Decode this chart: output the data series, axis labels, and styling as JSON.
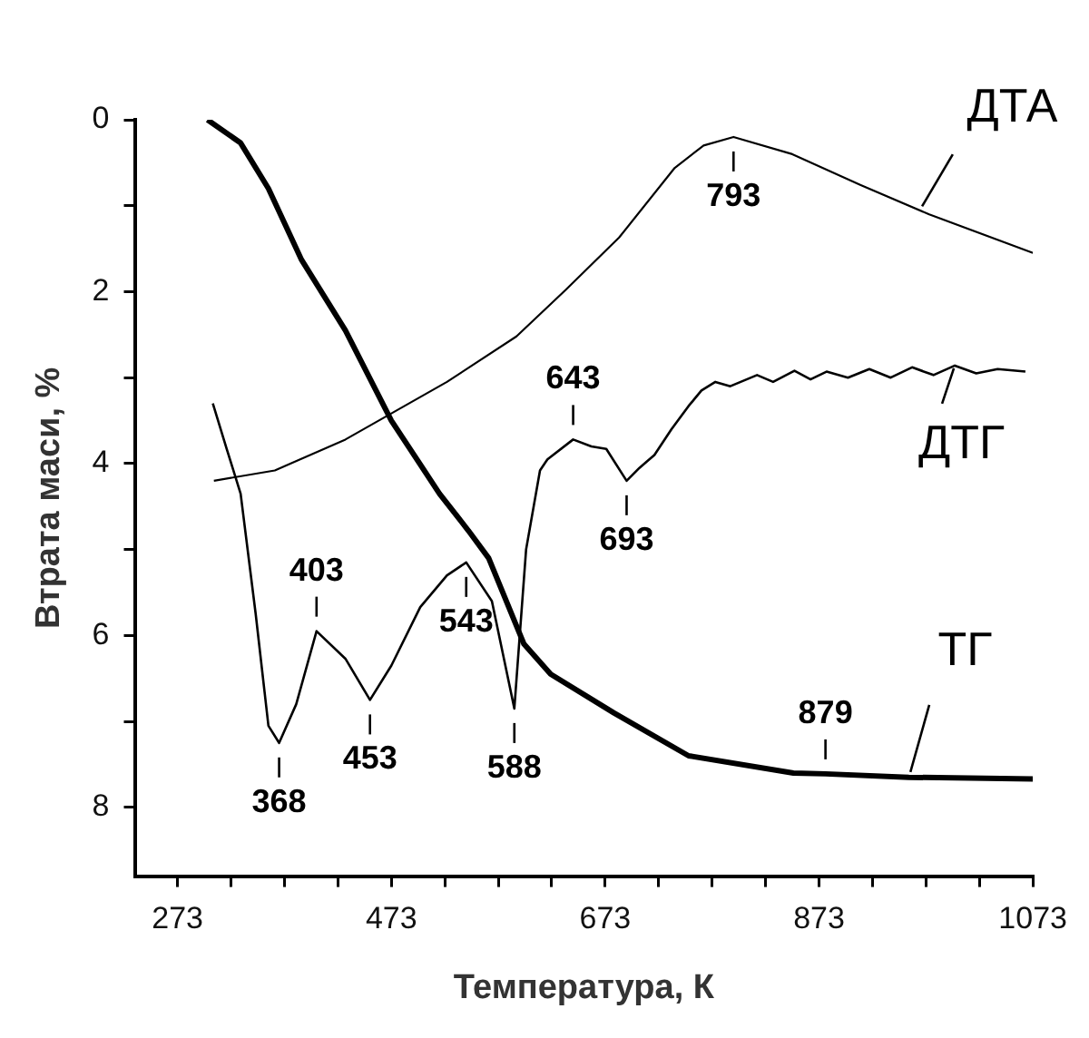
{
  "chart_data": {
    "type": "line",
    "xlabel": "Температура, К",
    "ylabel": "Втрата маси, %",
    "xlim": [
      233,
      1073
    ],
    "ylim": [
      8.8,
      0
    ],
    "xticks": [
      273,
      {
        "value": 323,
        "label": null
      },
      {
        "value": 373,
        "label": null
      },
      {
        "value": 423,
        "label": null
      },
      473,
      {
        "value": 523,
        "label": null
      },
      {
        "value": 573,
        "label": null
      },
      {
        "value": 623,
        "label": null
      },
      673,
      {
        "value": 723,
        "label": null
      },
      {
        "value": 773,
        "label": null
      },
      {
        "value": 823,
        "label": null
      },
      873,
      {
        "value": 923,
        "label": null
      },
      {
        "value": 973,
        "label": null
      },
      {
        "value": 1023,
        "label": null
      },
      1073
    ],
    "yticks": [
      0,
      {
        "value": 1,
        "label": null
      },
      2,
      {
        "value": 3,
        "label": null
      },
      4,
      {
        "value": 5,
        "label": null
      },
      6,
      {
        "value": 7,
        "label": null
      },
      8
    ],
    "grid": false,
    "legend": "right",
    "series": [
      {
        "name": "ТГ",
        "color": "#000000",
        "x": [
          301,
          332,
          358,
          389,
          430,
          473,
          518,
          545,
          564,
          597,
          622,
          681,
          751,
          849,
          879,
          957,
          1073
        ],
        "values": [
          0,
          0.27,
          0.8,
          1.63,
          2.45,
          3.5,
          4.35,
          4.78,
          5.1,
          6.1,
          6.45,
          6.9,
          7.4,
          7.6,
          7.61,
          7.65,
          7.67
        ]
      },
      {
        "name": "ДТГ",
        "color": "#000000",
        "x": [
          306,
          319,
          332,
          346,
          358,
          368,
          384,
          403,
          430,
          453,
          473,
          500,
          525,
          543,
          567,
          588,
          599,
          612,
          619,
          643,
          660,
          674,
          693,
          705,
          719,
          735,
          751,
          763,
          776,
          790,
          815,
          830,
          850,
          865,
          880,
          900,
          920,
          940,
          960,
          980,
          1000,
          1020,
          1040,
          1066
        ],
        "values": [
          3.3,
          3.83,
          4.35,
          5.74,
          7.05,
          7.25,
          6.8,
          5.95,
          6.27,
          6.75,
          6.35,
          5.67,
          5.3,
          5.15,
          5.6,
          6.85,
          5.0,
          4.08,
          3.95,
          3.72,
          3.8,
          3.83,
          4.2,
          4.05,
          3.9,
          3.6,
          3.33,
          3.15,
          3.05,
          3.1,
          2.97,
          3.05,
          2.92,
          3.02,
          2.93,
          3.0,
          2.9,
          3.0,
          2.88,
          2.97,
          2.86,
          2.95,
          2.9,
          2.93
        ]
      },
      {
        "name": "ДТА",
        "color": "#000000",
        "x": [
          307,
          364,
          430,
          525,
          590,
          636,
          686,
          738,
          765,
          793,
          848,
          912,
          976,
          1073
        ],
        "values": [
          4.2,
          4.08,
          3.72,
          3.05,
          2.52,
          1.98,
          1.37,
          0.56,
          0.3,
          0.2,
          0.4,
          0.76,
          1.1,
          1.55
        ]
      }
    ],
    "annotations": [
      {
        "text": "368",
        "x": 368,
        "y": 7.25
      },
      {
        "text": "403",
        "x": 403,
        "y": 5.95
      },
      {
        "text": "453",
        "x": 453,
        "y": 6.75
      },
      {
        "text": "543",
        "x": 543,
        "y": 5.15
      },
      {
        "text": "588",
        "x": 588,
        "y": 6.85
      },
      {
        "text": "643",
        "x": 643,
        "y": 3.72
      },
      {
        "text": "693",
        "x": 693,
        "y": 4.2
      },
      {
        "text": "793",
        "x": 793,
        "y": 0.2
      },
      {
        "text": "879",
        "x": 879,
        "y": 7.61
      }
    ]
  }
}
